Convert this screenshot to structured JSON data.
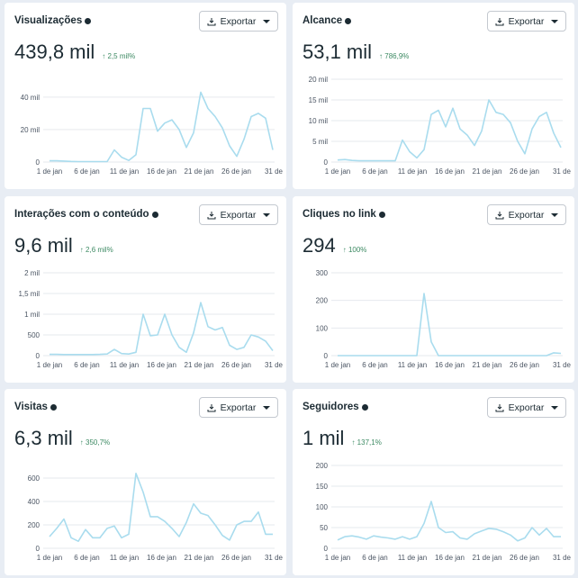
{
  "export_label": "Exportar",
  "colors": {
    "line": "#a9dcee",
    "grid": "#e6e9ee",
    "delta": "#3d8a63"
  },
  "x_ticks": [
    "1 de jan",
    "6 de jan",
    "11 de jan",
    "16 de jan",
    "21 de jan",
    "26 de jan",
    "31 de"
  ],
  "cards": [
    {
      "title": "Visualizações",
      "value": "439,8 mil",
      "delta": "↑ 2,5 mil%",
      "chart_data": {
        "type": "line",
        "y_ticks": [
          {
            "v": 0,
            "l": "0"
          },
          {
            "v": 20,
            "l": "20 mil"
          },
          {
            "v": 40,
            "l": "40 mil"
          }
        ],
        "ymax": 51,
        "values": [
          0.8,
          0.8,
          0.6,
          0.4,
          0.3,
          0.3,
          0.3,
          0.3,
          0.3,
          7.5,
          3,
          1,
          4.5,
          33,
          33,
          19,
          24,
          26,
          20,
          9,
          18,
          43,
          33,
          28,
          21,
          10,
          3.5,
          14,
          28,
          30,
          27,
          7.5
        ]
      }
    },
    {
      "title": "Alcance",
      "value": "53,1 mil",
      "delta": "↑ 786,9%",
      "chart_data": {
        "type": "line",
        "y_ticks": [
          {
            "v": 0,
            "l": "0"
          },
          {
            "v": 5,
            "l": "5 mil"
          },
          {
            "v": 10,
            "l": "10 mil"
          },
          {
            "v": 15,
            "l": "15 mil"
          },
          {
            "v": 20,
            "l": "20 mil"
          }
        ],
        "ymax": 20,
        "values": [
          0.5,
          0.6,
          0.4,
          0.3,
          0.3,
          0.3,
          0.3,
          0.3,
          0.3,
          5.3,
          2.5,
          1,
          3,
          11.5,
          12.5,
          8.5,
          13,
          8,
          6.5,
          4,
          7.5,
          15,
          12,
          11.5,
          9.5,
          5,
          2,
          8,
          11,
          12,
          7,
          3.5
        ]
      }
    },
    {
      "title": "Interações com o conteúdo",
      "value": "9,6 mil",
      "delta": "↑ 2,6 mil%",
      "chart_data": {
        "type": "line",
        "y_ticks": [
          {
            "v": 0,
            "l": "0"
          },
          {
            "v": 500,
            "l": "500"
          },
          {
            "v": 1000,
            "l": "1 mil"
          },
          {
            "v": 1500,
            "l": "1,5 mil"
          },
          {
            "v": 2000,
            "l": "2 mil"
          }
        ],
        "ymax": 2000,
        "values": [
          30,
          30,
          25,
          25,
          25,
          25,
          25,
          30,
          40,
          150,
          50,
          40,
          80,
          1000,
          480,
          500,
          1000,
          500,
          200,
          80,
          550,
          1280,
          700,
          620,
          680,
          250,
          150,
          200,
          500,
          450,
          350,
          120
        ]
      }
    },
    {
      "title": "Cliques no link",
      "value": "294",
      "delta": "↑ 100%",
      "chart_data": {
        "type": "line",
        "y_ticks": [
          {
            "v": 0,
            "l": "0"
          },
          {
            "v": 100,
            "l": "100"
          },
          {
            "v": 200,
            "l": "200"
          },
          {
            "v": 300,
            "l": "300"
          }
        ],
        "ymax": 300,
        "values": [
          0,
          0,
          0,
          0,
          0,
          0,
          0,
          0,
          0,
          0,
          0,
          0,
          225,
          50,
          0,
          0,
          0,
          0,
          0,
          0,
          0,
          0,
          0,
          0,
          0,
          0,
          0,
          0,
          0,
          0,
          10,
          8
        ]
      }
    },
    {
      "title": "Visitas",
      "value": "6,3 mil",
      "delta": "↑ 350,7%",
      "chart_data": {
        "type": "line",
        "y_ticks": [
          {
            "v": 0,
            "l": "0"
          },
          {
            "v": 200,
            "l": "200"
          },
          {
            "v": 400,
            "l": "400"
          },
          {
            "v": 600,
            "l": "600"
          }
        ],
        "ymax": 708,
        "values": [
          100,
          170,
          250,
          90,
          60,
          160,
          90,
          90,
          170,
          190,
          90,
          120,
          640,
          480,
          270,
          270,
          230,
          170,
          100,
          220,
          380,
          300,
          280,
          200,
          110,
          70,
          200,
          230,
          230,
          310,
          120,
          120
        ]
      }
    },
    {
      "title": "Seguidores",
      "value": "1 mil",
      "delta": "↑ 137,1%",
      "chart_data": {
        "type": "line",
        "y_ticks": [
          {
            "v": 0,
            "l": "0"
          },
          {
            "v": 50,
            "l": "50"
          },
          {
            "v": 100,
            "l": "100"
          },
          {
            "v": 150,
            "l": "150"
          },
          {
            "v": 200,
            "l": "200"
          }
        ],
        "ymax": 200,
        "values": [
          20,
          28,
          30,
          27,
          22,
          30,
          27,
          25,
          22,
          28,
          22,
          28,
          60,
          113,
          50,
          38,
          40,
          25,
          22,
          35,
          42,
          48,
          46,
          40,
          32,
          18,
          25,
          50,
          32,
          48,
          28,
          28
        ]
      }
    }
  ]
}
